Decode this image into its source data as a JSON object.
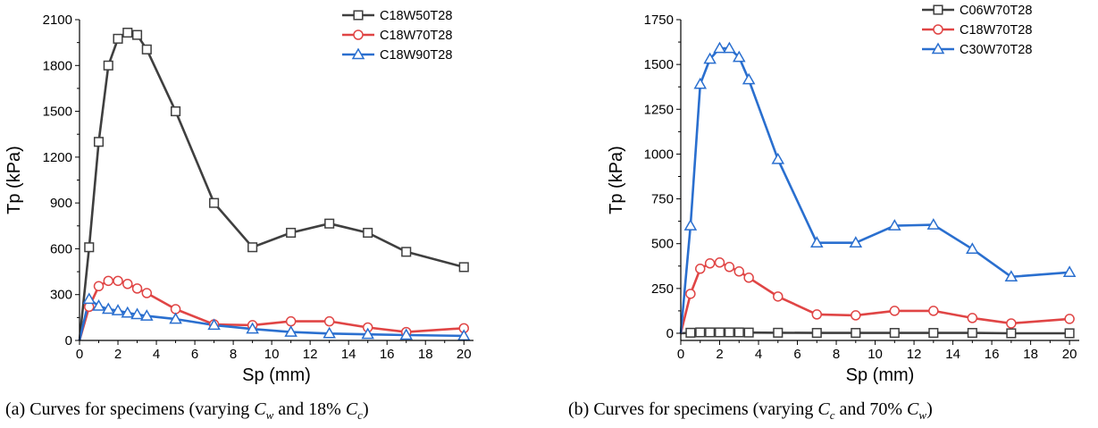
{
  "chart_data": [
    {
      "id": "a",
      "type": "line",
      "xlabel": "Sp (mm)",
      "ylabel": "Tp (kPa)",
      "xlim": [
        0,
        20.5
      ],
      "ylim": [
        0,
        2100
      ],
      "xticks": [
        0,
        2,
        4,
        6,
        8,
        10,
        12,
        14,
        16,
        18,
        20
      ],
      "yticks": [
        0,
        300,
        600,
        900,
        1200,
        1500,
        1800,
        2100
      ],
      "grid": false,
      "legend_position": "top-right",
      "series": [
        {
          "name": "C18W50T28",
          "color": "#3f3f3f",
          "marker": "square",
          "x": [
            0,
            0.5,
            1,
            1.5,
            2,
            2.5,
            3,
            3.5,
            5,
            7,
            9,
            11,
            13,
            15,
            17,
            20
          ],
          "y": [
            0,
            610,
            1300,
            1800,
            1975,
            2015,
            2000,
            1905,
            1500,
            900,
            610,
            705,
            765,
            705,
            580,
            480
          ]
        },
        {
          "name": "C18W70T28",
          "color": "#e04545",
          "marker": "circle",
          "x": [
            0,
            0.5,
            1,
            1.5,
            2,
            2.5,
            3,
            3.5,
            5,
            7,
            9,
            11,
            13,
            15,
            17,
            20
          ],
          "y": [
            0,
            220,
            355,
            390,
            390,
            370,
            340,
            310,
            205,
            105,
            100,
            125,
            125,
            85,
            55,
            80
          ]
        },
        {
          "name": "C18W90T28",
          "color": "#2a6fcf",
          "marker": "triangle",
          "x": [
            0,
            0.5,
            1,
            1.5,
            2,
            2.5,
            3,
            3.5,
            5,
            7,
            9,
            11,
            13,
            15,
            17,
            20
          ],
          "y": [
            0,
            270,
            225,
            205,
            195,
            180,
            170,
            160,
            140,
            100,
            75,
            55,
            45,
            40,
            35,
            30
          ]
        }
      ]
    },
    {
      "id": "b",
      "type": "line",
      "xlabel": "Sp (mm)",
      "ylabel": "Tp (kPa)",
      "xlim": [
        0,
        20.5
      ],
      "ylim": [
        -40,
        1750
      ],
      "xticks": [
        0,
        2,
        4,
        6,
        8,
        10,
        12,
        14,
        16,
        18,
        20
      ],
      "yticks": [
        0,
        250,
        500,
        750,
        1000,
        1250,
        1500,
        1750
      ],
      "grid": false,
      "legend_position": "top-right",
      "series": [
        {
          "name": "C06W70T28",
          "color": "#3f3f3f",
          "marker": "square",
          "x": [
            0,
            0.5,
            1,
            1.5,
            2,
            2.5,
            3,
            3.5,
            5,
            7,
            9,
            11,
            13,
            15,
            17,
            20
          ],
          "y": [
            0,
            3,
            5,
            5,
            5,
            5,
            5,
            4,
            3,
            2,
            2,
            2,
            2,
            2,
            0,
            0
          ]
        },
        {
          "name": "C18W70T28",
          "color": "#e04545",
          "marker": "circle",
          "x": [
            0,
            0.5,
            1,
            1.5,
            2,
            2.5,
            3,
            3.5,
            5,
            7,
            9,
            11,
            13,
            15,
            17,
            20
          ],
          "y": [
            0,
            220,
            360,
            390,
            395,
            370,
            345,
            310,
            205,
            105,
            100,
            125,
            125,
            85,
            55,
            80
          ]
        },
        {
          "name": "C30W70T28",
          "color": "#2a6fcf",
          "marker": "triangle",
          "x": [
            0,
            0.5,
            1,
            1.5,
            2,
            2.5,
            3,
            3.5,
            5,
            7,
            9,
            11,
            13,
            15,
            17,
            20
          ],
          "y": [
            0,
            600,
            1390,
            1530,
            1590,
            1590,
            1540,
            1415,
            970,
            505,
            505,
            600,
            605,
            470,
            315,
            340
          ]
        }
      ]
    }
  ],
  "captions": {
    "a": {
      "prefix": "(a) Curves for specimens (varying ",
      "m1": "C",
      "s1": "w",
      "mid": " and 18% ",
      "m2": "C",
      "s2": "c",
      "suffix": ")"
    },
    "b": {
      "prefix": "(b) Curves for specimens (varying ",
      "m1": "C",
      "s1": "c",
      "mid": " and 70% ",
      "m2": "C",
      "s2": "w",
      "suffix": ")"
    }
  }
}
